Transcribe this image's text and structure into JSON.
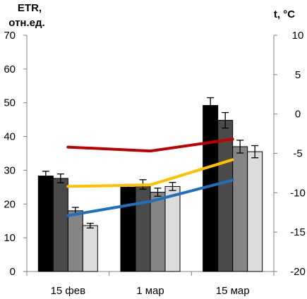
{
  "chart_data": {
    "type": "bar",
    "categories": [
      "15 фев",
      "1 мар",
      "15 мар"
    ],
    "left_axis": {
      "label_line1": "ETR,",
      "label_line2": "отн.ед.",
      "ylim": [
        0,
        70
      ],
      "ticks": [
        0,
        10,
        20,
        30,
        40,
        50,
        60,
        70
      ]
    },
    "right_axis": {
      "label": "t, °C",
      "ylim": [
        -20,
        10
      ],
      "ticks": [
        -20,
        -15,
        -10,
        -5,
        0,
        5,
        10
      ]
    },
    "series": [
      {
        "color": "#000000",
        "values": [
          28.3,
          25.0,
          49.2
        ],
        "errors": [
          1.4,
          0.8,
          2.3
        ]
      },
      {
        "color": "#4a4a4a",
        "values": [
          27.6,
          25.8,
          44.8
        ],
        "errors": [
          1.3,
          1.4,
          2.3
        ]
      },
      {
        "color": "#858585",
        "values": [
          18.0,
          23.5,
          37.0
        ],
        "errors": [
          1.0,
          1.2,
          1.9
        ]
      },
      {
        "color": "#dcdcdc",
        "values": [
          13.6,
          25.2,
          35.5
        ],
        "errors": [
          0.7,
          1.2,
          1.8
        ]
      }
    ],
    "temperature_lines": [
      {
        "color": "#c00000",
        "values": [
          -4.2,
          -4.7,
          -3.2
        ]
      },
      {
        "color": "#ffc000",
        "values": [
          -9.2,
          -9.0,
          -5.8
        ]
      },
      {
        "color": "#1f6fbf",
        "values": [
          -12.9,
          -11.1,
          -8.4
        ]
      }
    ],
    "grid": false,
    "legend": "none"
  }
}
